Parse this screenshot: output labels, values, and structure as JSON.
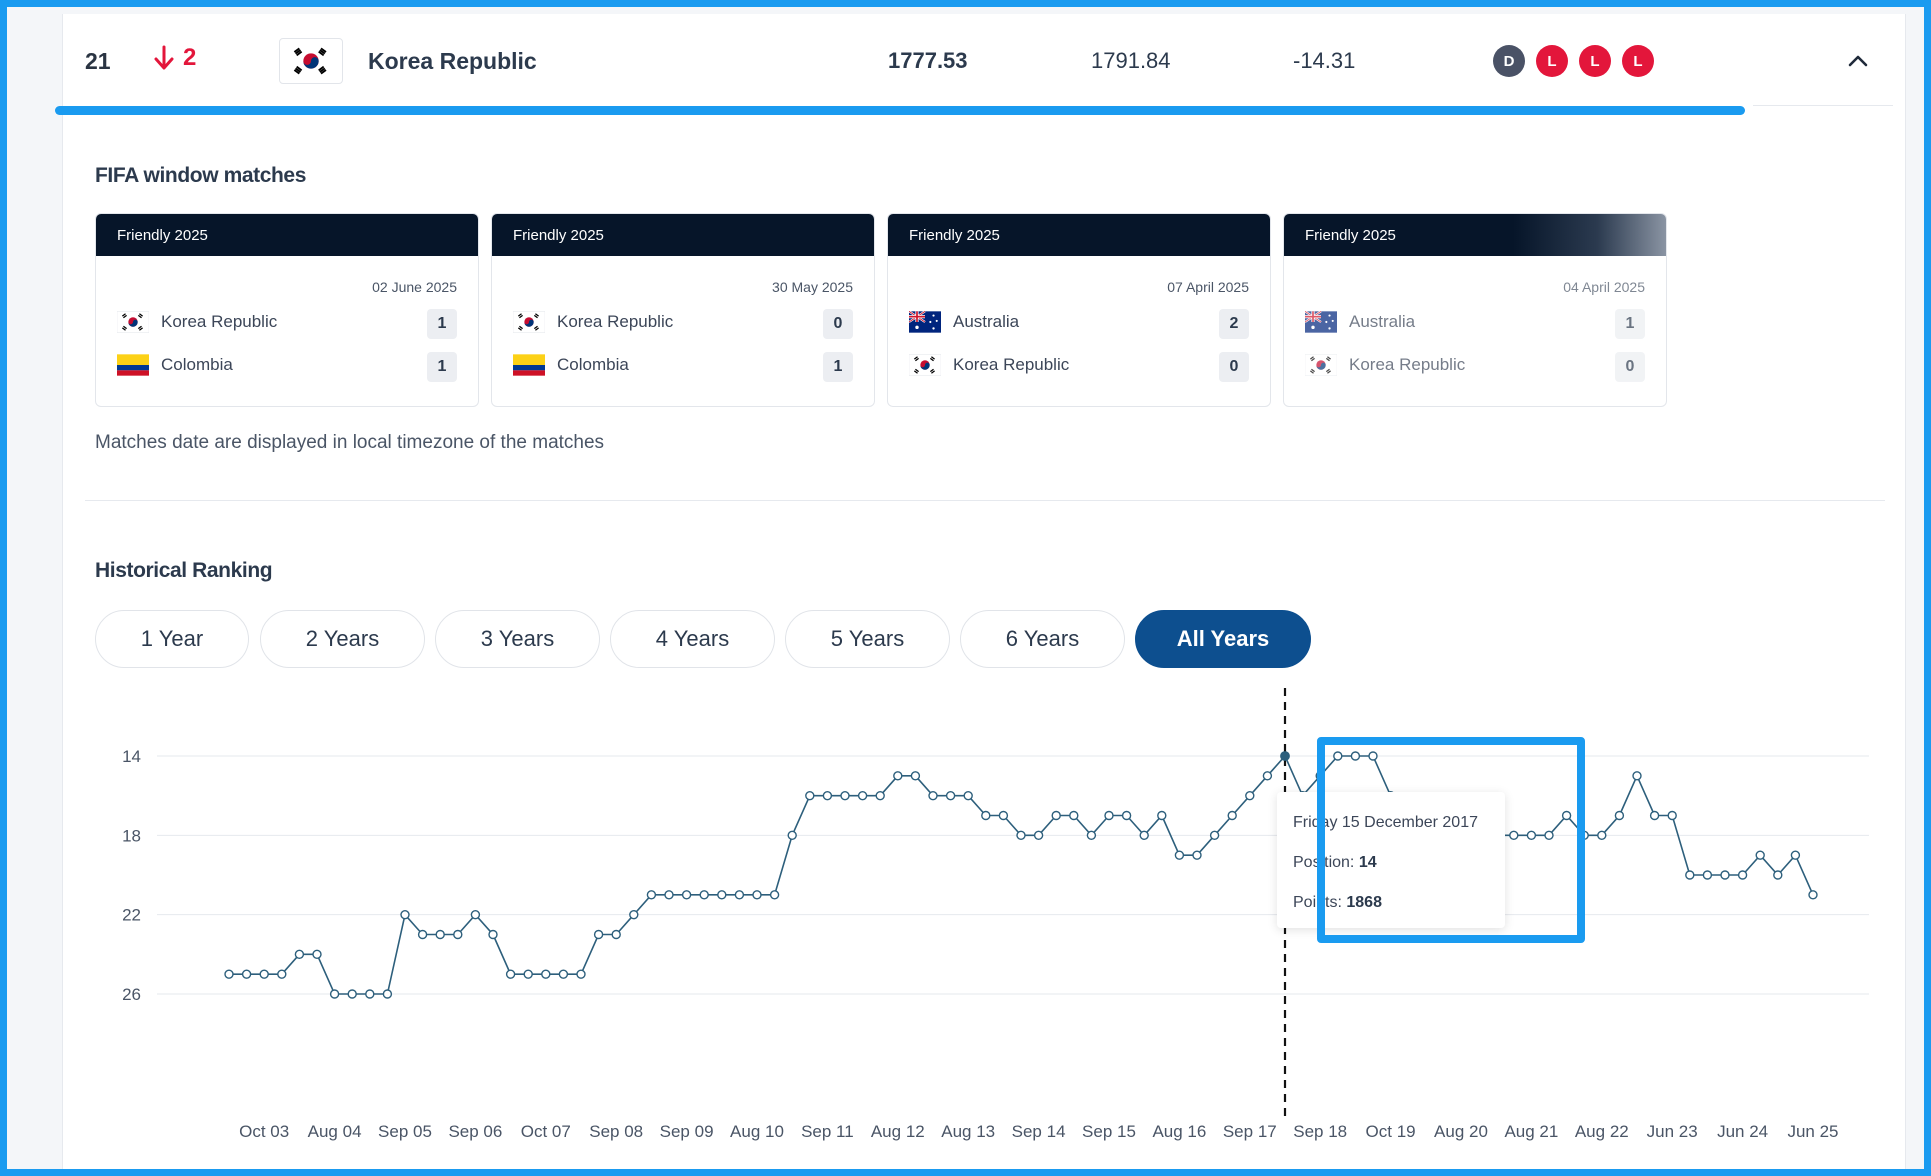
{
  "header": {
    "rank": "21",
    "move": "2",
    "country": "Korea Republic",
    "total_points": "1777.53",
    "previous_points": "1791.84",
    "diff": "-14.31",
    "recent_results": [
      "D",
      "L",
      "L",
      "L"
    ],
    "progress_fraction": 0.92
  },
  "fifa_window": {
    "title": "FIFA window matches",
    "matches": [
      {
        "competition": "Friendly 2025",
        "date": "02 June 2025",
        "home": "Korea Republic",
        "home_flag": "korea-flag-icon",
        "home_score": "1",
        "away": "Colombia",
        "away_flag": "colombia-flag-icon",
        "away_score": "1"
      },
      {
        "competition": "Friendly 2025",
        "date": "30 May 2025",
        "home": "Korea Republic",
        "home_flag": "korea-flag-icon",
        "home_score": "0",
        "away": "Colombia",
        "away_flag": "colombia-flag-icon",
        "away_score": "1"
      },
      {
        "competition": "Friendly 2025",
        "date": "07 April 2025",
        "home": "Australia",
        "home_flag": "australia-flag-icon",
        "home_score": "2",
        "away": "Korea Republic",
        "away_flag": "korea-flag-icon",
        "away_score": "0"
      },
      {
        "competition": "Friendly 2025",
        "date": "04 April 2025",
        "home": "Australia",
        "home_flag": "australia-flag-icon",
        "home_score": "1",
        "away": "Korea Republic",
        "away_flag": "korea-flag-icon",
        "away_score": "0"
      }
    ],
    "note": "Matches date are displayed in local timezone of the matches"
  },
  "historical": {
    "title": "Historical Ranking",
    "tabs": [
      "1 Year",
      "2 Years",
      "3 Years",
      "4 Years",
      "5 Years",
      "6 Years",
      "All Years"
    ],
    "active_tab": "All Years",
    "tooltip": {
      "date": "Friday 15 December 2017",
      "position_label": "Position:",
      "position_value": "14",
      "points_label": "Points:",
      "points_value": "1868"
    }
  },
  "colors": {
    "accent": "#1a9bf0",
    "line": "#2d5f7c",
    "loss": "#e3163b",
    "draw": "#4a5266",
    "active_tab": "#0d4f8f",
    "header_dark": "#061529"
  },
  "chart_data": {
    "type": "line",
    "y_ticks": [
      14,
      18,
      22,
      26
    ],
    "ylim": [
      12.6,
      27.4
    ],
    "y_inverted": true,
    "grid": true,
    "x_tick_labels": [
      "Oct 03",
      "Aug 04",
      "Sep 05",
      "Sep 06",
      "Oct 07",
      "Sep 08",
      "Sep 09",
      "Aug 10",
      "Sep 11",
      "Aug 12",
      "Aug 13",
      "Sep 14",
      "Sep 15",
      "Aug 16",
      "Sep 17",
      "Sep 18",
      "Oct 19",
      "Aug 20",
      "Aug 21",
      "Aug 22",
      "Jun 23",
      "Jun 24",
      "Jun 25"
    ],
    "x_tick_index": [
      2,
      6,
      10,
      14,
      18,
      22,
      26,
      30,
      34,
      38,
      42,
      46,
      50,
      54,
      58,
      62,
      66,
      70,
      74,
      78,
      82,
      86,
      90
    ],
    "positions": [
      25,
      25,
      25,
      25,
      24,
      24,
      26,
      26,
      26,
      26,
      22,
      23,
      23,
      23,
      22,
      23,
      25,
      25,
      25,
      25,
      25,
      23,
      23,
      22,
      21,
      21,
      21,
      21,
      21,
      21,
      21,
      21,
      18,
      16,
      16,
      16,
      16,
      16,
      15,
      15,
      16,
      16,
      16,
      17,
      17,
      18,
      18,
      17,
      17,
      18,
      17,
      17,
      18,
      17,
      19,
      19,
      18,
      17,
      16,
      15,
      14,
      16,
      15,
      14,
      14,
      14,
      16,
      17,
      17,
      18,
      19,
      19,
      18,
      18,
      18,
      18,
      17,
      18,
      18,
      17,
      15,
      17,
      17,
      20,
      20,
      20,
      20,
      19,
      20,
      19,
      21
    ],
    "highlight_index": 60
  }
}
